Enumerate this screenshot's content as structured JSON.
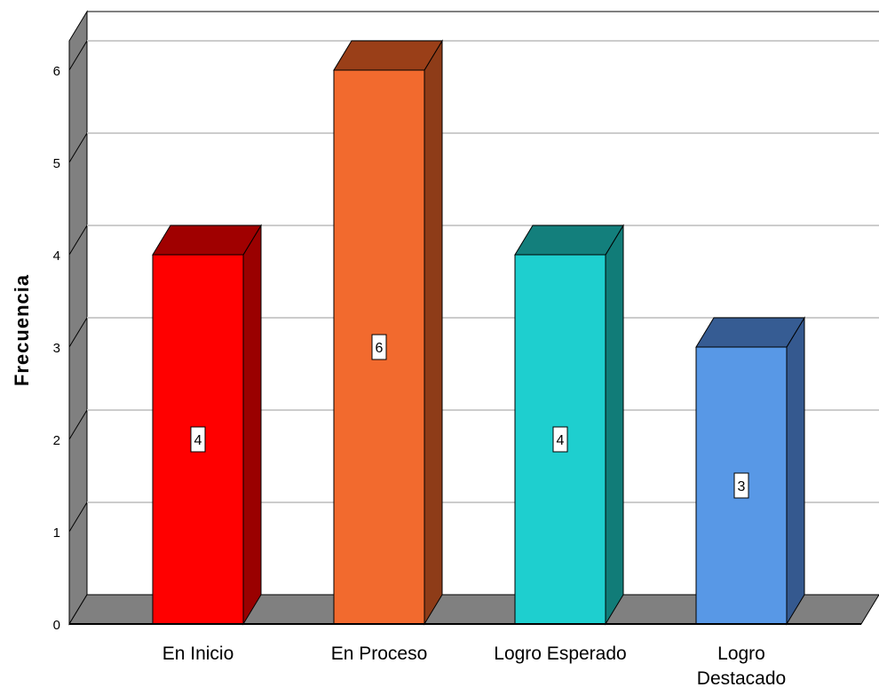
{
  "chart_data": {
    "type": "bar",
    "categories": [
      "En Inicio",
      "En Proceso",
      "Logro Esperado",
      "Logro Destacado"
    ],
    "category_lines": [
      [
        "En Inicio"
      ],
      [
        "En Proceso"
      ],
      [
        "Logro Esperado"
      ],
      [
        "Logro",
        "Destacado"
      ]
    ],
    "values": [
      4,
      6,
      4,
      3
    ],
    "data_labels": [
      "4",
      "6",
      "4",
      "3"
    ],
    "ylabel": "Frecuencia",
    "xlabel": "",
    "ylim": [
      0,
      6
    ],
    "yticks": [
      "0",
      "1",
      "2",
      "3",
      "4",
      "5",
      "6"
    ],
    "grid": true,
    "three_d": true,
    "colors": {
      "bars": [
        {
          "front": "#ff0000",
          "side": "#9a0000",
          "top": "#a00000"
        },
        {
          "front": "#f26a2e",
          "side": "#8e3c18",
          "top": "#9a3f18"
        },
        {
          "front": "#1ecfcf",
          "side": "#117c78",
          "top": "#137f7c"
        },
        {
          "front": "#5898e6",
          "side": "#35598f",
          "top": "#365c93"
        }
      ],
      "wall": "#808080",
      "floor": "#808080",
      "grid": "#cccccc"
    }
  }
}
